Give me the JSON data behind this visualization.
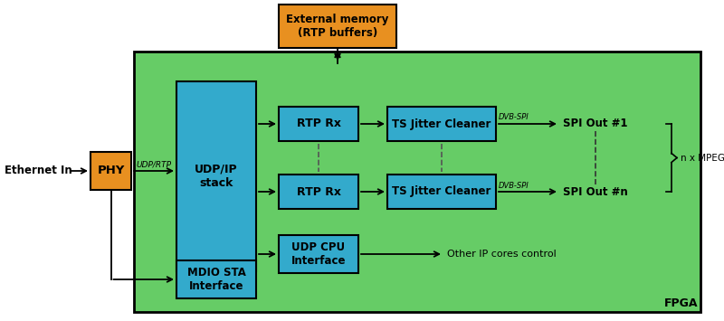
{
  "fig_width": 8.0,
  "fig_height": 3.55,
  "bg_color": "#ffffff",
  "fpga_color": "#66cc66",
  "block_color": "#33aacc",
  "phy_color": "#e89020",
  "ext_mem_color": "#e89020",
  "ext_mem_label": "External memory\n(RTP buffers)",
  "phy_label": "PHY",
  "udp_stack_label": "UDP/IP\nstack",
  "rtp_rx_label": "RTP Rx",
  "ts_jitter_label": "TS Jitter Cleaner",
  "udp_cpu_label": "UDP CPU\nInterface",
  "mdio_label": "MDIO STA\nInterface",
  "ethernet_in": "Ethernet In",
  "udp_rtp_label": "UDP/RTP",
  "dvb_spi_label": "DVB-SPI",
  "spi_out1_label": "SPI Out #1",
  "spi_outn_label": "SPI Out #n",
  "mpeg_label": "n x MPEG TS out",
  "other_ip_label": "Other IP cores control",
  "fpga_label": "FPGA"
}
